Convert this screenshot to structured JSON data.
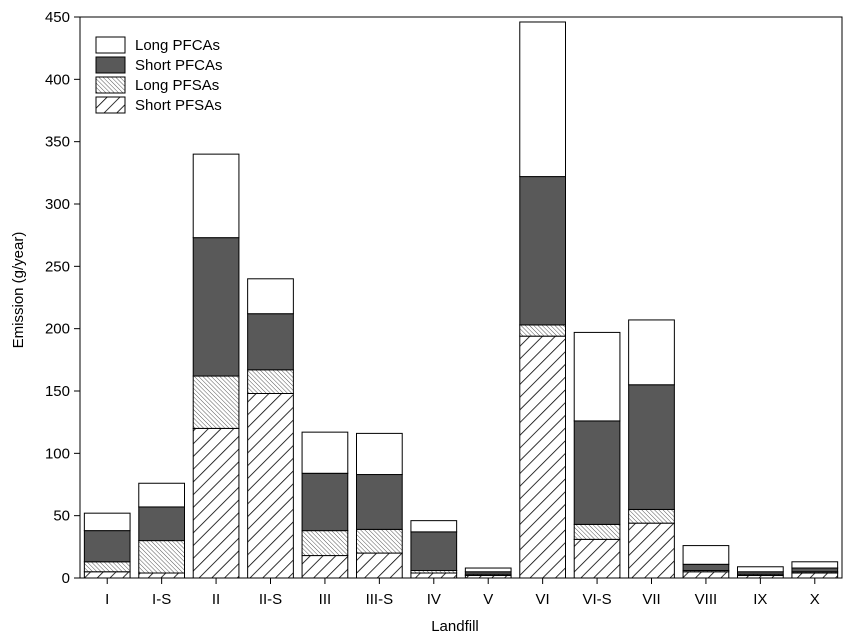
{
  "chart_data": {
    "type": "bar",
    "stacked": true,
    "categories": [
      "I",
      "I-S",
      "II",
      "II-S",
      "III",
      "III-S",
      "IV",
      "V",
      "VI",
      "VI-S",
      "VII",
      "VIII",
      "IX",
      "X"
    ],
    "series": [
      {
        "name": "Short PFSAs",
        "fill": "hatch-diagonal",
        "values": [
          5,
          4,
          120,
          148,
          18,
          20,
          4,
          2,
          194,
          31,
          44,
          5,
          2,
          4
        ]
      },
      {
        "name": "Long PFSAs",
        "fill": "hatch-fine",
        "values": [
          8,
          26,
          42,
          19,
          20,
          19,
          2,
          1,
          9,
          12,
          11,
          1,
          1,
          1
        ]
      },
      {
        "name": "Short PFCAs",
        "fill": "#595959",
        "values": [
          25,
          27,
          111,
          45,
          46,
          44,
          31,
          2,
          119,
          83,
          100,
          5,
          2,
          3
        ]
      },
      {
        "name": "Long PFCAs",
        "fill": "#ffffff",
        "values": [
          14,
          19,
          67,
          28,
          33,
          33,
          9,
          3,
          124,
          71,
          52,
          15,
          4,
          5
        ]
      }
    ],
    "legend_order": [
      "Long PFCAs",
      "Short PFCAs",
      "Long PFSAs",
      "Short PFSAs"
    ],
    "xlabel": "Landfill",
    "ylabel": "Emission (g/year)",
    "ylim": [
      0,
      450
    ],
    "yticks": [
      0,
      50,
      100,
      150,
      200,
      250,
      300,
      350,
      400,
      450
    ],
    "grid": false,
    "legend_position": "top-left"
  }
}
